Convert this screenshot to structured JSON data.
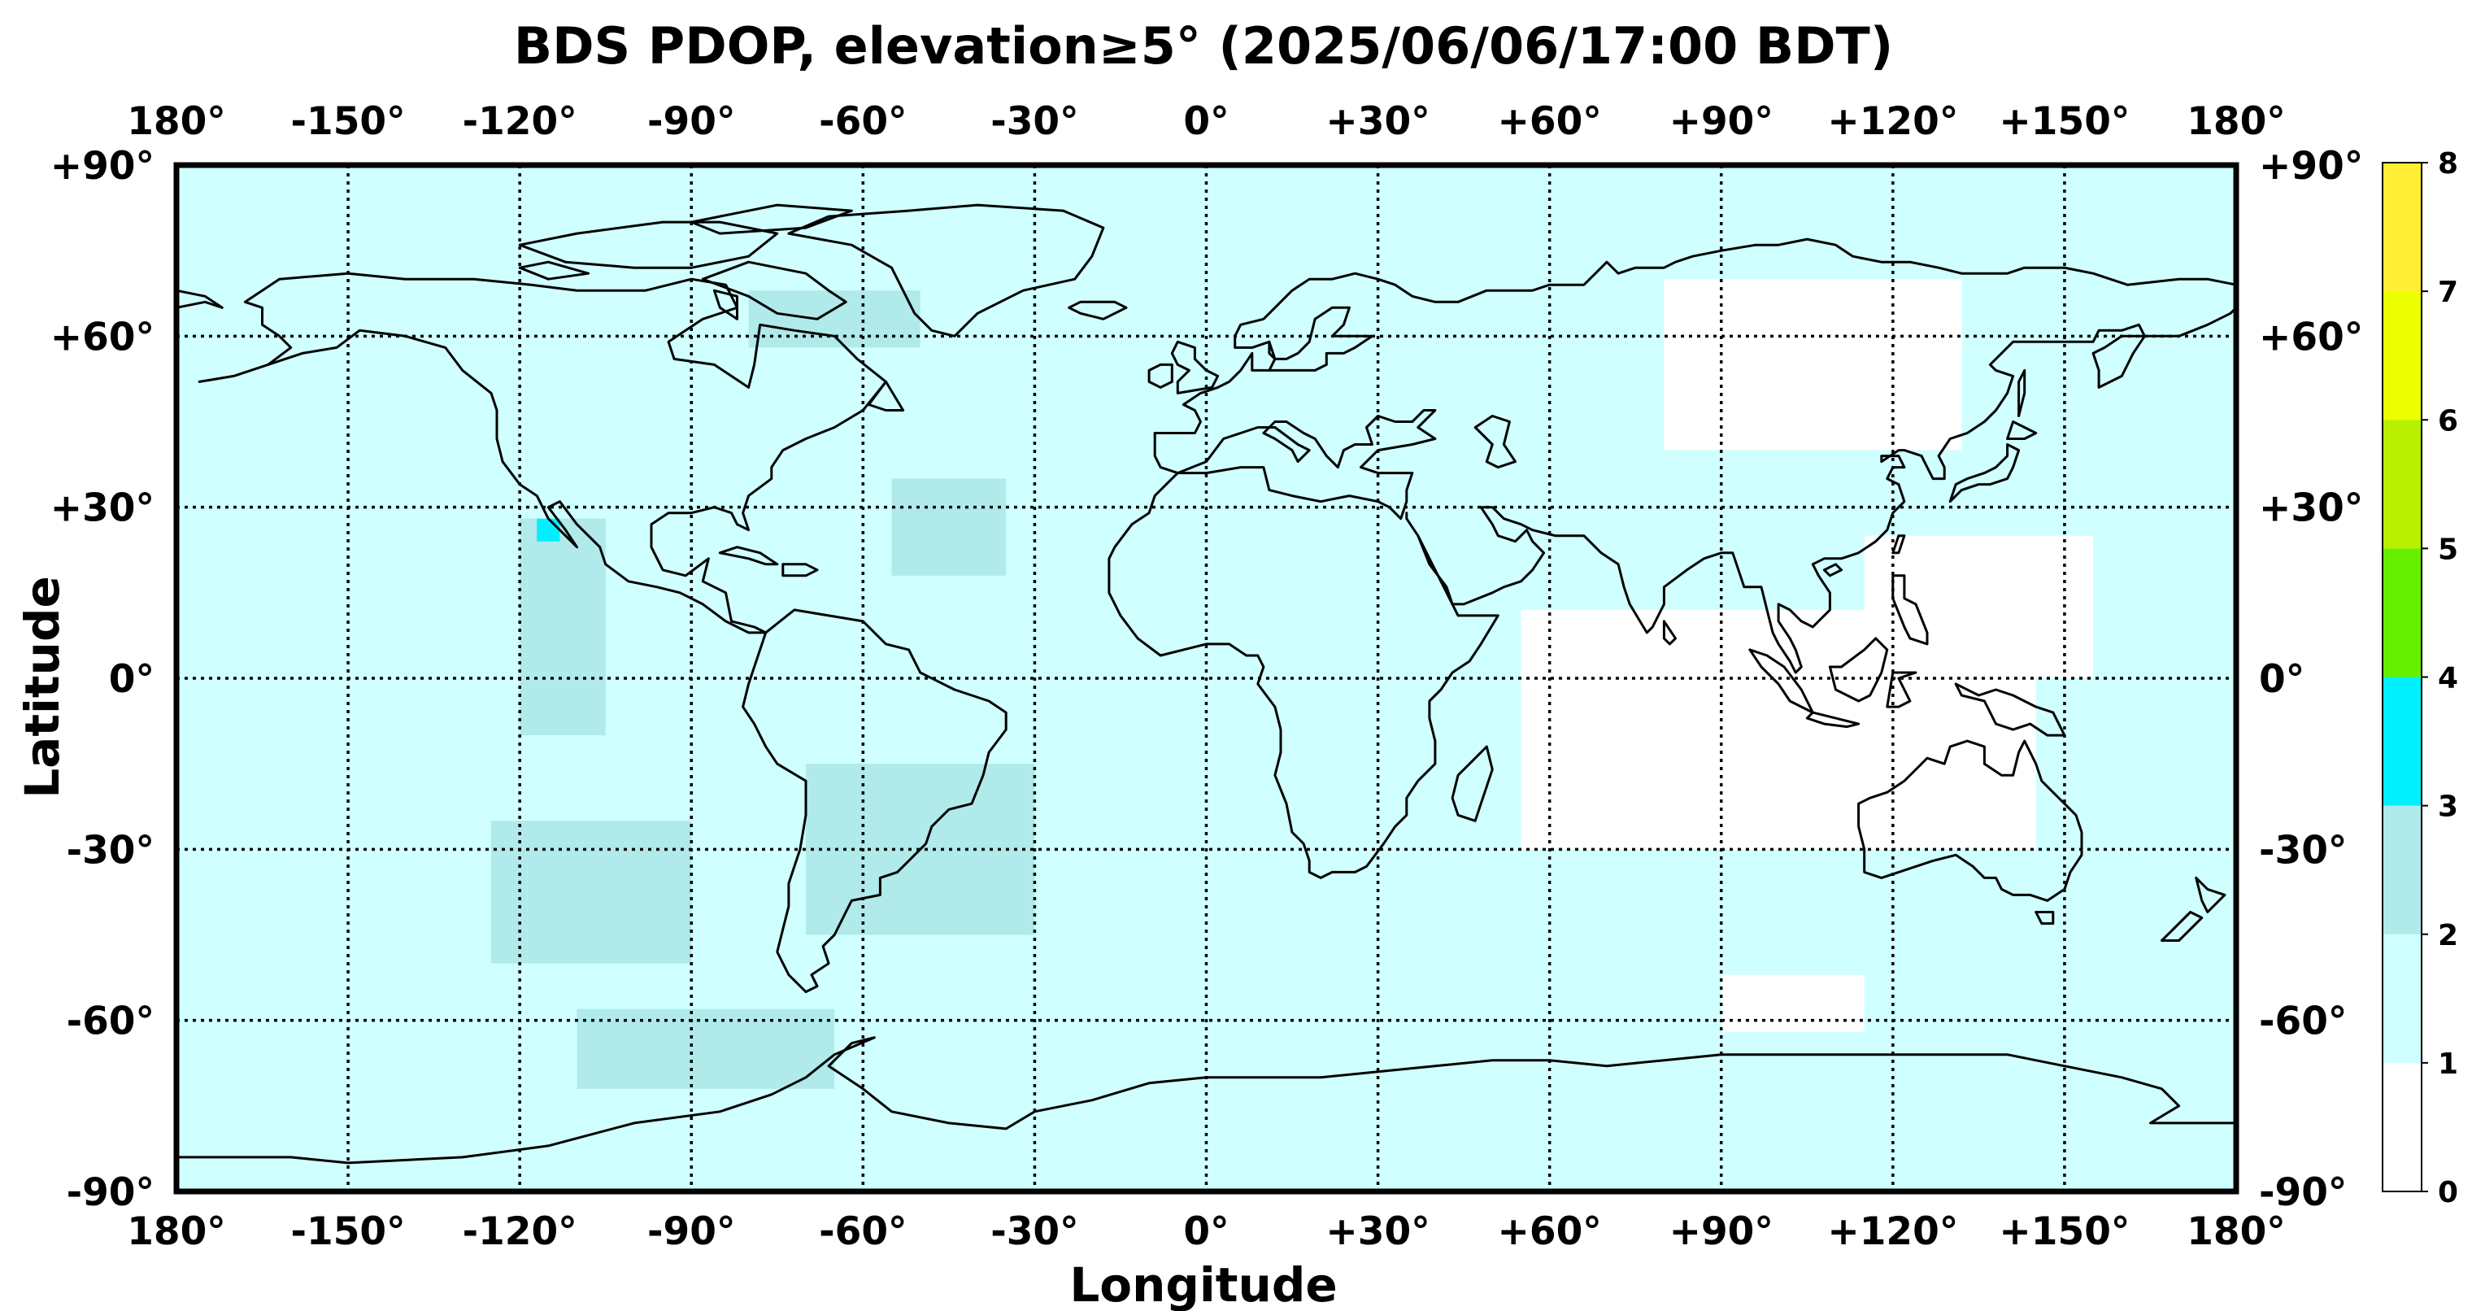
{
  "chart_data": {
    "type": "heatmap",
    "title": "BDS PDOP, elevation≥5° (2025/06/06/17:00 BDT)",
    "xlabel": "Longitude",
    "ylabel": "Latitude",
    "xlim": [
      -180,
      180
    ],
    "ylim": [
      -90,
      90
    ],
    "grid": true,
    "x_ticks": [
      {
        "value": -180,
        "label": "180°"
      },
      {
        "value": -150,
        "label": "-150°"
      },
      {
        "value": -120,
        "label": "-120°"
      },
      {
        "value": -90,
        "label": "-90°"
      },
      {
        "value": -60,
        "label": "-60°"
      },
      {
        "value": -30,
        "label": "-30°"
      },
      {
        "value": 0,
        "label": "0°"
      },
      {
        "value": 30,
        "label": "+30°"
      },
      {
        "value": 60,
        "label": "+60°"
      },
      {
        "value": 90,
        "label": "+90°"
      },
      {
        "value": 120,
        "label": "+120°"
      },
      {
        "value": 150,
        "label": "+150°"
      },
      {
        "value": 180,
        "label": "180°"
      }
    ],
    "y_ticks": [
      {
        "value": 90,
        "label": "+90°"
      },
      {
        "value": 60,
        "label": "+60°"
      },
      {
        "value": 30,
        "label": "+30°"
      },
      {
        "value": 0,
        "label": "0°"
      },
      {
        "value": -30,
        "label": "-30°"
      },
      {
        "value": -60,
        "label": "-60°"
      },
      {
        "value": -90,
        "label": "-90°"
      }
    ],
    "colorbar": {
      "bins": [
        {
          "from": 0,
          "to": 1,
          "color": "#ffffff"
        },
        {
          "from": 1,
          "to": 2,
          "color": "#d0ffff"
        },
        {
          "from": 2,
          "to": 3,
          "color": "#b0eaea"
        },
        {
          "from": 3,
          "to": 4,
          "color": "#00f0ff"
        },
        {
          "from": 4,
          "to": 5,
          "color": "#66f000"
        },
        {
          "from": 5,
          "to": 6,
          "color": "#b8f000"
        },
        {
          "from": 6,
          "to": 7,
          "color": "#ecff00"
        },
        {
          "from": 7,
          "to": 8,
          "color": "#ffee33"
        }
      ],
      "ticks": [
        "0",
        "1",
        "2",
        "3",
        "4",
        "5",
        "6",
        "7",
        "8"
      ]
    },
    "background_value_range": [
      1,
      2
    ],
    "regions": [
      {
        "name": "Asia / Indian Ocean",
        "range": [
          0,
          1
        ],
        "lon": [
          55,
          145
        ],
        "lat": [
          -30,
          12
        ]
      },
      {
        "name": "Siberia",
        "range": [
          0,
          1
        ],
        "lon": [
          80,
          132
        ],
        "lat": [
          40,
          70
        ]
      },
      {
        "name": "Western Pacific",
        "range": [
          0,
          1
        ],
        "lon": [
          115,
          155
        ],
        "lat": [
          0,
          25
        ]
      },
      {
        "name": "Southern Indian Ocean",
        "range": [
          0,
          1
        ],
        "lon": [
          90,
          115
        ],
        "lat": [
          -62,
          -52
        ]
      },
      {
        "name": "Eastern Pacific",
        "range": [
          2,
          3
        ],
        "lon": [
          -120,
          -105
        ],
        "lat": [
          -10,
          28
        ]
      },
      {
        "name": "South Pacific",
        "range": [
          2,
          3
        ],
        "lon": [
          -125,
          -90
        ],
        "lat": [
          -50,
          -25
        ]
      },
      {
        "name": "Central Atlantic",
        "range": [
          2,
          3
        ],
        "lon": [
          -55,
          -35
        ],
        "lat": [
          18,
          35
        ]
      },
      {
        "name": "South America / South Atlantic",
        "range": [
          2,
          3
        ],
        "lon": [
          -70,
          -30
        ],
        "lat": [
          -45,
          -15
        ]
      },
      {
        "name": "Canada / Greenland",
        "range": [
          2,
          3
        ],
        "lon": [
          -80,
          -50
        ],
        "lat": [
          58,
          68
        ]
      },
      {
        "name": "Antarctica Peninsula",
        "range": [
          2,
          3
        ],
        "lon": [
          -110,
          -65
        ],
        "lat": [
          -72,
          -58
        ]
      },
      {
        "name": "Baja California",
        "range": [
          3,
          4
        ],
        "lon": [
          -117,
          -113
        ],
        "lat": [
          24,
          28
        ]
      }
    ]
  }
}
